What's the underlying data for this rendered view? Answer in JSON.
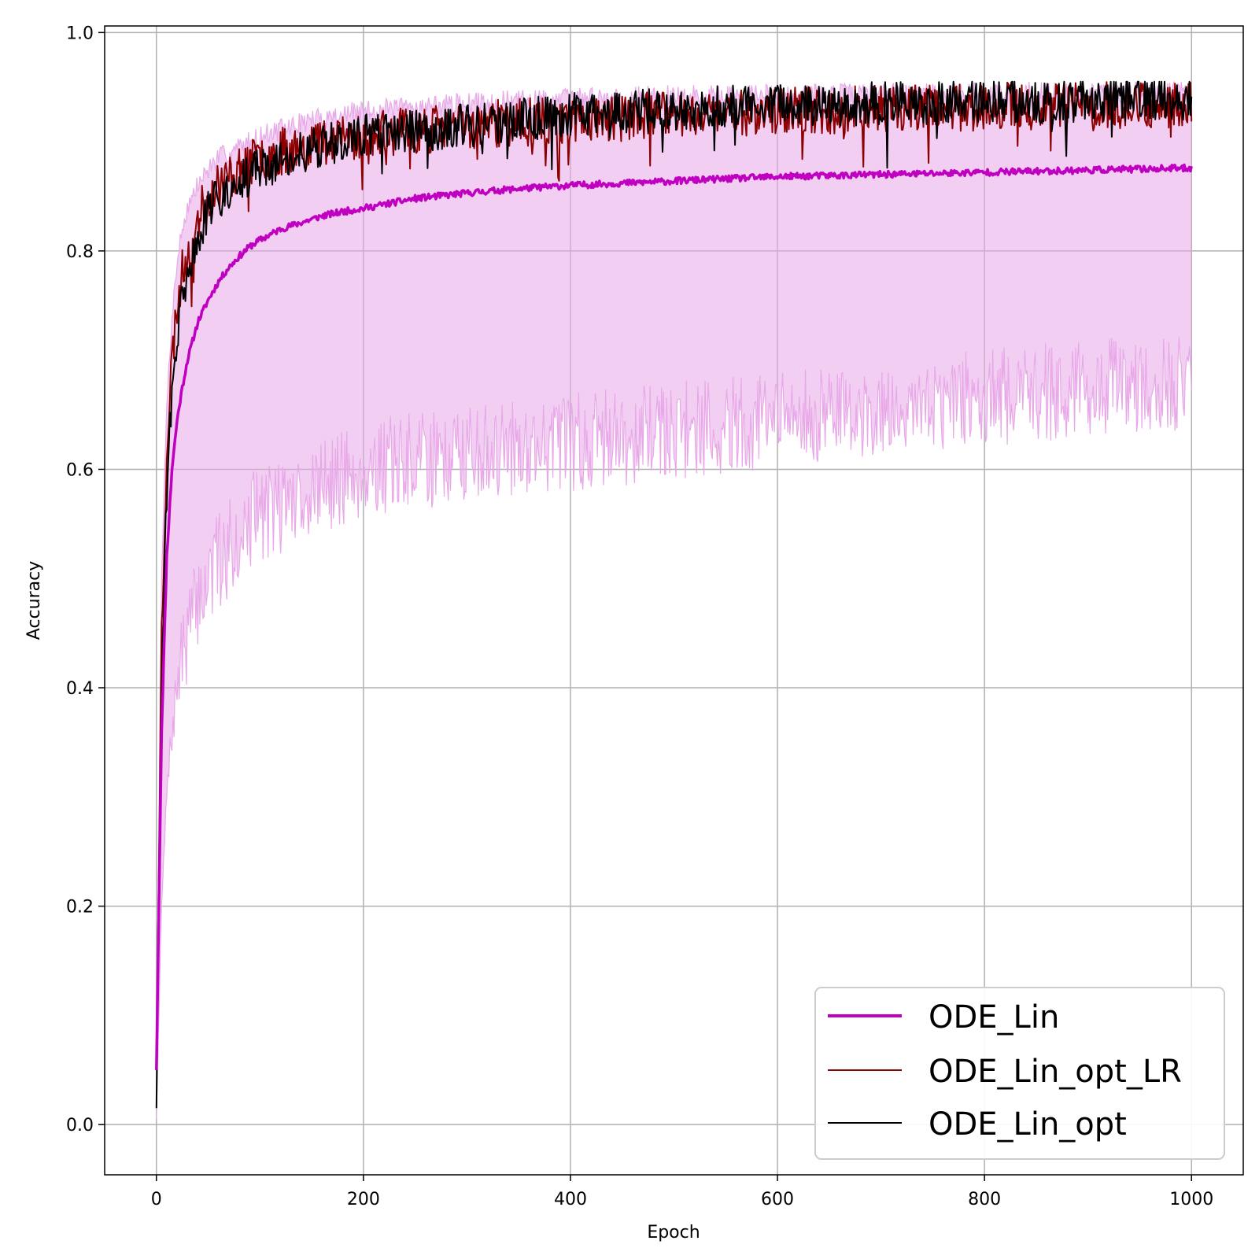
{
  "chart_data": {
    "type": "line",
    "xlabel": "Epoch",
    "ylabel": "Accuracy",
    "xlim": [
      -50,
      1050
    ],
    "ylim": [
      -0.046,
      1.006
    ],
    "xticks": [
      0,
      200,
      400,
      600,
      800,
      1000
    ],
    "xtick_labels": [
      "0",
      "200",
      "400",
      "600",
      "800",
      "1000"
    ],
    "yticks": [
      0.0,
      0.2,
      0.4,
      0.6,
      0.8,
      1.0
    ],
    "ytick_labels": [
      "0.0",
      "0.2",
      "0.4",
      "0.6",
      "0.8",
      "1.0"
    ],
    "grid": true,
    "legend_position": "bottom-right",
    "series": [
      {
        "name": "ODE_Lin",
        "color": "#c000c0",
        "x": [
          0,
          5,
          10,
          15,
          20,
          25,
          30,
          40,
          50,
          60,
          70,
          80,
          90,
          100,
          120,
          140,
          160,
          180,
          200,
          250,
          300,
          350,
          400,
          450,
          500,
          550,
          600,
          650,
          700,
          750,
          800,
          850,
          900,
          950,
          1000
        ],
        "values": [
          0.05,
          0.36,
          0.52,
          0.6,
          0.645,
          0.675,
          0.7,
          0.735,
          0.755,
          0.772,
          0.785,
          0.795,
          0.804,
          0.81,
          0.82,
          0.826,
          0.832,
          0.836,
          0.839,
          0.848,
          0.853,
          0.857,
          0.86,
          0.862,
          0.864,
          0.866,
          0.868,
          0.869,
          0.87,
          0.871,
          0.872,
          0.873,
          0.874,
          0.875,
          0.876
        ]
      },
      {
        "name": "ODE_Lin_opt_LR",
        "color": "#8b0000",
        "x": [
          0,
          5,
          10,
          15,
          20,
          25,
          30,
          40,
          50,
          60,
          80,
          100,
          150,
          200,
          300,
          400,
          500,
          600,
          700,
          800,
          900,
          1000
        ],
        "values": [
          0.05,
          0.45,
          0.62,
          0.7,
          0.75,
          0.78,
          0.8,
          0.83,
          0.85,
          0.86,
          0.875,
          0.885,
          0.9,
          0.905,
          0.915,
          0.92,
          0.925,
          0.928,
          0.93,
          0.932,
          0.933,
          0.935
        ]
      },
      {
        "name": "ODE_Lin_opt",
        "color": "#000000",
        "x": [
          0,
          5,
          10,
          15,
          20,
          25,
          30,
          40,
          50,
          60,
          80,
          100,
          150,
          200,
          300,
          400,
          500,
          600,
          700,
          800,
          900,
          1000
        ],
        "values": [
          0.015,
          0.4,
          0.58,
          0.67,
          0.72,
          0.755,
          0.78,
          0.81,
          0.835,
          0.85,
          0.865,
          0.875,
          0.895,
          0.905,
          0.915,
          0.925,
          0.93,
          0.933,
          0.935,
          0.937,
          0.938,
          0.94
        ]
      }
    ],
    "band": {
      "color": "#e8a8e8",
      "x": [
        0,
        5,
        10,
        15,
        20,
        25,
        30,
        40,
        50,
        60,
        80,
        100,
        150,
        200,
        300,
        400,
        500,
        600,
        700,
        800,
        900,
        1000
      ],
      "upper": [
        0.07,
        0.5,
        0.66,
        0.74,
        0.79,
        0.82,
        0.84,
        0.86,
        0.875,
        0.885,
        0.895,
        0.905,
        0.92,
        0.928,
        0.935,
        0.94,
        0.942,
        0.943,
        0.944,
        0.945,
        0.945,
        0.945
      ],
      "lower": [
        0.005,
        0.2,
        0.3,
        0.36,
        0.4,
        0.43,
        0.45,
        0.48,
        0.5,
        0.515,
        0.54,
        0.56,
        0.58,
        0.6,
        0.615,
        0.625,
        0.635,
        0.645,
        0.655,
        0.665,
        0.675,
        0.68
      ]
    }
  }
}
